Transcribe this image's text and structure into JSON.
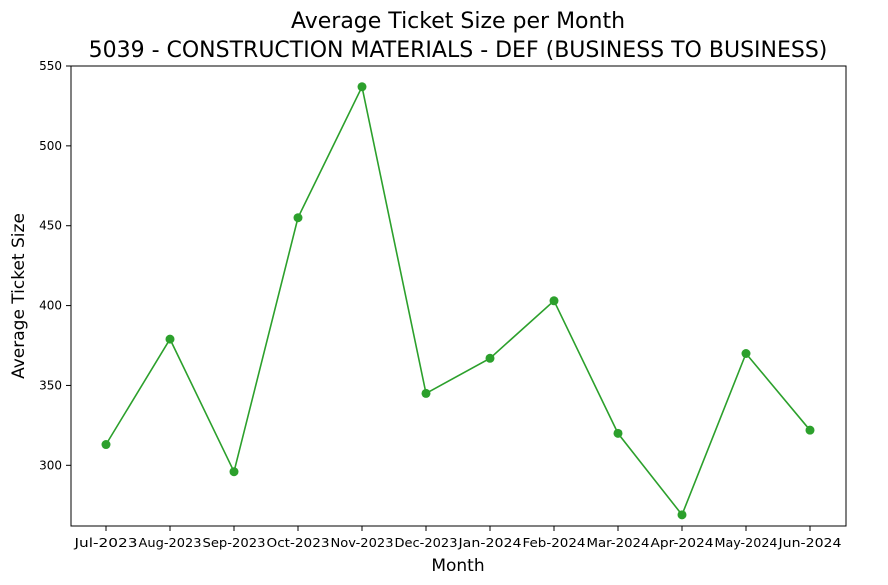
{
  "chart_data": {
    "type": "line",
    "title": "Average Ticket Size per Month",
    "subtitle": "5039 - CONSTRUCTION MATERIALS - DEF (BUSINESS TO BUSINESS)",
    "xlabel": "Month",
    "ylabel": "Average Ticket Size",
    "categories": [
      "Jul-2023",
      "Aug-2023",
      "Sep-2023",
      "Oct-2023",
      "Nov-2023",
      "Dec-2023",
      "Jan-2024",
      "Feb-2024",
      "Mar-2024",
      "Apr-2024",
      "May-2024",
      "Jun-2024"
    ],
    "values": [
      313,
      379,
      296,
      455,
      537,
      345,
      367,
      403,
      320,
      269,
      370,
      322
    ],
    "ylim": [
      262,
      550
    ],
    "yticks": [
      300,
      350,
      400,
      450,
      500,
      550
    ],
    "grid": false,
    "line_color": "#2ca02c",
    "marker": "circle"
  }
}
